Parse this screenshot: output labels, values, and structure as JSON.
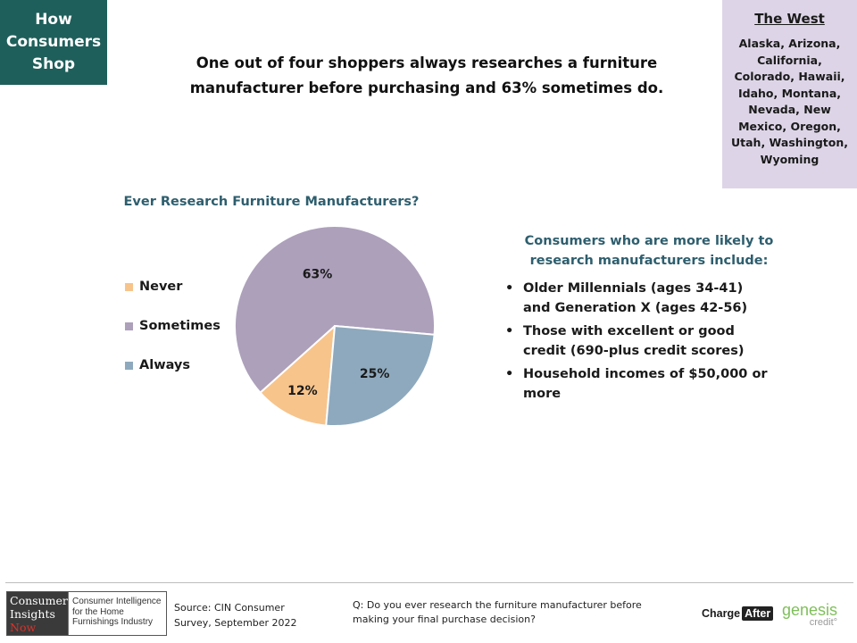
{
  "badge": {
    "lines": [
      "How",
      "Consumers",
      "Shop"
    ]
  },
  "headline": "One out of four shoppers always researches a furniture manufacturer before purchasing and 63% sometimes do.",
  "region": {
    "title": "The West",
    "states": "Alaska, Arizona, California, Colorado, Hawaii, Idaho, Montana, Nevada, New Mexico, Oregon, Utah, Washington, Wyoming"
  },
  "chart_data": {
    "type": "pie",
    "title": "Ever Research Furniture Manufacturers?",
    "slices": [
      {
        "name": "Never",
        "value": 12,
        "label": "12%",
        "color": "#f7c48c"
      },
      {
        "name": "Sometimes",
        "value": 63,
        "label": "63%",
        "color": "#ada0bb"
      },
      {
        "name": "Always",
        "value": 25,
        "label": "25%",
        "color": "#8ea9bd"
      }
    ],
    "legend_position": "left"
  },
  "insights": {
    "heading": "Consumers who are more likely to research manufacturers include:",
    "bullets": [
      "Older Millennials (ages 34-41) and Generation X (ages 42-56)",
      "Those with excellent or good credit (690-plus credit scores)",
      "Household incomes of $50,000 or more"
    ]
  },
  "footer": {
    "logo": {
      "brand_lines": [
        "Consumer",
        "Insights",
        "Now"
      ],
      "tagline_lines": [
        "Consumer Intelligence",
        "for the Home",
        "Furnishings Industry"
      ]
    },
    "source": "Source: CIN Consumer Survey, September 2022",
    "question": "Q: Do you ever research the furniture manufacturer before making your final purchase decision?",
    "sponsor1": {
      "part1": "Charge",
      "part2": "After"
    },
    "sponsor2": {
      "word": "genesis",
      "sub": "credit°"
    }
  }
}
